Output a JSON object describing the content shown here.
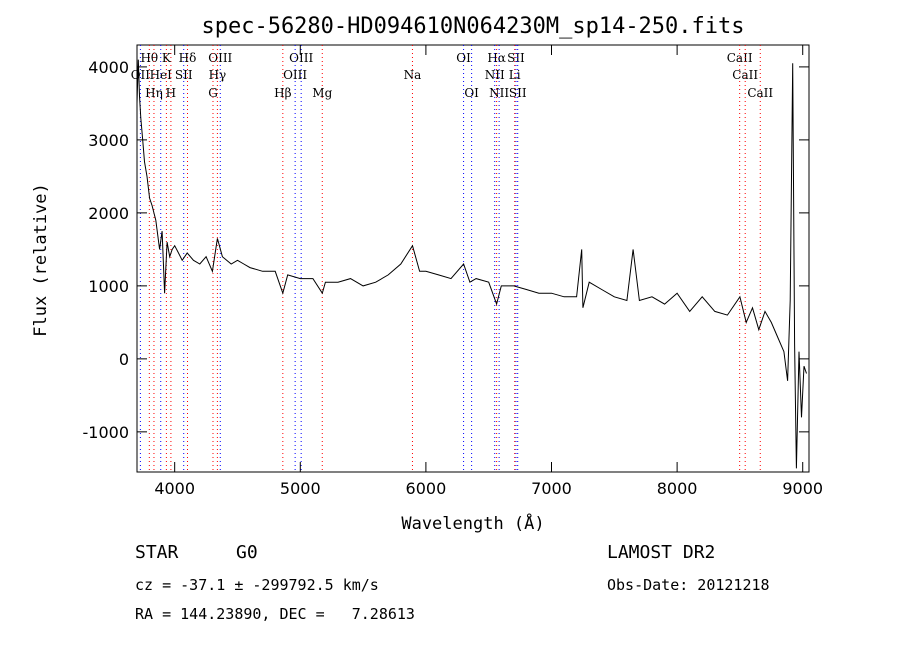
{
  "chart_data": {
    "type": "line",
    "title": "spec-56280-HD094610N064230M_sp14-250.fits",
    "xlabel": "Wavelength (Å)",
    "ylabel": "Flux (relative)",
    "xlim": [
      3700,
      9050
    ],
    "ylim": [
      -1550,
      4300
    ],
    "xticks": [
      4000,
      5000,
      6000,
      7000,
      8000,
      9000
    ],
    "yticks": [
      -1000,
      0,
      1000,
      2000,
      3000,
      4000
    ],
    "grid": false,
    "series": [
      {
        "x": [
          3700,
          3710,
          3720,
          3730,
          3745,
          3760,
          3780,
          3800,
          3820,
          3850,
          3880,
          3900,
          3920,
          3940,
          3960,
          3980,
          4000,
          4030,
          4060,
          4100,
          4150,
          4200,
          4250,
          4300,
          4340,
          4380,
          4450,
          4500,
          4550,
          4600,
          4700,
          4800,
          4861,
          4900,
          5000,
          5100,
          5175,
          5200,
          5300,
          5400,
          5500,
          5600,
          5700,
          5800,
          5893,
          5950,
          6000,
          6100,
          6200,
          6300,
          6350,
          6400,
          6500,
          6563,
          6600,
          6700,
          6800,
          6900,
          7000,
          7100,
          7200,
          7240,
          7250,
          7300,
          7400,
          7500,
          7600,
          7650,
          7700,
          7800,
          7900,
          8000,
          8100,
          8200,
          8300,
          8400,
          8500,
          8550,
          8600,
          8650,
          8700,
          8750,
          8800,
          8850,
          8880,
          8900,
          8920,
          8935,
          8950,
          8970,
          8990,
          9010,
          9030
        ],
        "y": [
          3500,
          4100,
          3600,
          3300,
          3000,
          2700,
          2500,
          2200,
          2100,
          1900,
          1500,
          1750,
          900,
          1600,
          1400,
          1500,
          1550,
          1450,
          1350,
          1450,
          1350,
          1300,
          1400,
          1200,
          1650,
          1400,
          1300,
          1350,
          1300,
          1250,
          1200,
          1200,
          900,
          1150,
          1100,
          1100,
          900,
          1050,
          1050,
          1100,
          1000,
          1050,
          1150,
          1300,
          1550,
          1200,
          1200,
          1150,
          1100,
          1300,
          1050,
          1100,
          1050,
          750,
          1000,
          1000,
          950,
          900,
          900,
          850,
          850,
          1500,
          700,
          1050,
          950,
          850,
          800,
          1500,
          800,
          850,
          750,
          900,
          650,
          850,
          650,
          600,
          850,
          500,
          700,
          400,
          650,
          500,
          300,
          100,
          -300,
          800,
          4050,
          200,
          -1500,
          100,
          -800,
          -100,
          -200
        ]
      }
    ],
    "lines": [
      {
        "label": "Hθ",
        "x": 3798,
        "row": 1,
        "color": "red"
      },
      {
        "label": "OII",
        "x": 3727,
        "row": 2,
        "color": "blue"
      },
      {
        "label": "HeI",
        "x": 3889,
        "row": 2,
        "color": "blue"
      },
      {
        "label": "H",
        "x": 3970,
        "row": 3,
        "color": "red"
      },
      {
        "label": "Hη",
        "x": 3835,
        "row": 3,
        "color": "red"
      },
      {
        "label": "K",
        "x": 3934,
        "row": 1,
        "color": "red"
      },
      {
        "label": "SII",
        "x": 4072,
        "row": 2,
        "color": "blue"
      },
      {
        "label": "Hδ",
        "x": 4102,
        "row": 1,
        "color": "red"
      },
      {
        "label": "OIII",
        "x": 4363,
        "row": 1,
        "color": "blue"
      },
      {
        "label": "Hγ",
        "x": 4340,
        "row": 2,
        "color": "red"
      },
      {
        "label": "G",
        "x": 4305,
        "row": 3,
        "color": "red"
      },
      {
        "label": "Hβ",
        "x": 4861,
        "row": 3,
        "color": "red"
      },
      {
        "label": "OIII",
        "x": 5007,
        "row": 1,
        "color": "blue"
      },
      {
        "label": "OIII",
        "x": 4959,
        "row": 2,
        "color": "blue"
      },
      {
        "label": "Mg",
        "x": 5175,
        "row": 3,
        "color": "red"
      },
      {
        "label": "Na",
        "x": 5893,
        "row": 2,
        "color": "red"
      },
      {
        "label": "OI",
        "x": 6300,
        "row": 1,
        "color": "blue"
      },
      {
        "label": "OI",
        "x": 6364,
        "row": 3,
        "color": "blue"
      },
      {
        "label": "Hα",
        "x": 6563,
        "row": 1,
        "color": "red"
      },
      {
        "label": "NII",
        "x": 6548,
        "row": 2,
        "color": "blue"
      },
      {
        "label": "NII",
        "x": 6583,
        "row": 3,
        "color": "blue"
      },
      {
        "label": "SII",
        "x": 6717,
        "row": 1,
        "color": "blue"
      },
      {
        "label": "Li",
        "x": 6707,
        "row": 2,
        "color": "red"
      },
      {
        "label": "SII",
        "x": 6731,
        "row": 3,
        "color": "blue"
      },
      {
        "label": "CaII",
        "x": 8498,
        "row": 1,
        "color": "red"
      },
      {
        "label": "CaII",
        "x": 8542,
        "row": 2,
        "color": "red"
      },
      {
        "label": "CaII",
        "x": 8662,
        "row": 3,
        "color": "red"
      }
    ]
  },
  "info": {
    "object_class": "STAR",
    "subclass": "G0",
    "survey": "LAMOST DR2",
    "cz_line": "cz = -37.1 ± -299792.5 km/s",
    "obs_date": "Obs-Date: 20121218",
    "radec": "RA = 144.23890, DEC =   7.28613"
  }
}
